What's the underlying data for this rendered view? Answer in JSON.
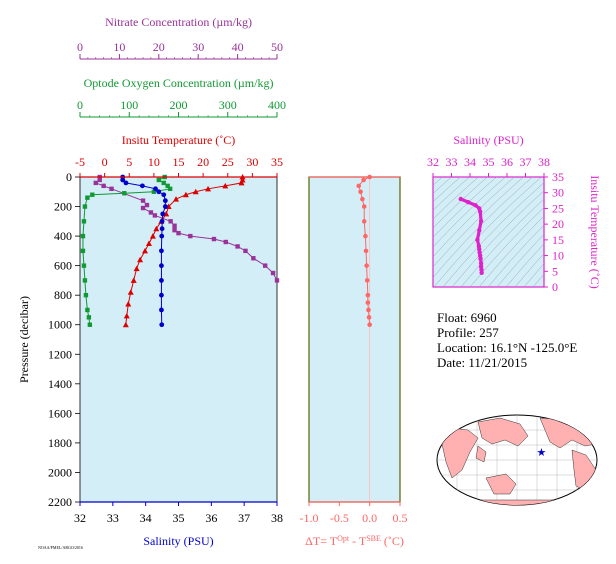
{
  "colors": {
    "nitrate": "#993399",
    "oxygen": "#119933",
    "temperature": "#dd0000",
    "salinity": "#0000cc",
    "dt": "#ff6666",
    "ts": "#dd22cc",
    "panel_bg": "#d4eef7",
    "map_land": "#ffb0b0",
    "map_ocean": "#ffffff",
    "float_marker": "#0000cc"
  },
  "credit": "NOAA/PMEL/ARGO/2016",
  "float_info": {
    "float": "Float:  6960",
    "profile": "Profile:  257",
    "location": "Location:  16.1°N  -125.0°E",
    "date": "Date:  11/21/2015"
  },
  "chart_data": [
    {
      "type": "line",
      "panel": "profile",
      "ylabel": "Pressure (decibar)",
      "ylim": [
        2200,
        0
      ],
      "yticks": [
        "0",
        "200",
        "400",
        "600",
        "800",
        "1000",
        "1200",
        "1400",
        "1600",
        "1800",
        "2000",
        "2200"
      ],
      "axes": {
        "nitrate": {
          "label": "Nitrate Concentration (µm/kg)",
          "range": [
            0,
            50
          ],
          "ticks": [
            "0",
            "10",
            "20",
            "30",
            "40",
            "50"
          ]
        },
        "oxygen": {
          "label": "Optode Oxygen Concentration (µm/kg)",
          "range": [
            0,
            400
          ],
          "ticks": [
            "0",
            "100",
            "200",
            "300",
            "400"
          ]
        },
        "temperature": {
          "label": "Insitu Temperature (˚C)",
          "range": [
            -5,
            35
          ],
          "ticks": [
            "-5",
            "0",
            "5",
            "10",
            "15",
            "20",
            "25",
            "30",
            "35"
          ]
        },
        "salinity": {
          "label": "Salinity (PSU)",
          "range": [
            32,
            38
          ],
          "ticks": [
            "32",
            "33",
            "34",
            "35",
            "36",
            "37",
            "38"
          ]
        }
      },
      "series": [
        {
          "name": "Nitrate",
          "axis": "nitrate",
          "x": [
            5,
            5,
            4,
            6,
            8,
            16,
            17,
            16,
            18,
            19,
            23,
            24,
            24,
            25,
            28,
            34,
            37,
            40,
            42,
            44,
            47,
            49,
            50
          ],
          "y": [
            0,
            20,
            40,
            60,
            80,
            160,
            190,
            210,
            240,
            260,
            300,
            330,
            360,
            380,
            400,
            420,
            440,
            470,
            500,
            550,
            600,
            650,
            700
          ]
        },
        {
          "name": "Oxygen",
          "axis": "oxygen",
          "x": [
            172,
            160,
            170,
            178,
            183,
            150,
            90,
            25,
            15,
            10,
            8,
            6,
            6,
            8,
            10,
            12,
            15,
            18,
            20
          ],
          "y": [
            0,
            20,
            40,
            60,
            80,
            100,
            110,
            120,
            140,
            200,
            300,
            400,
            500,
            600,
            700,
            800,
            900,
            950,
            1000
          ]
        },
        {
          "name": "Temperature",
          "axis": "temperature",
          "x": [
            28.0,
            28.0,
            27.8,
            24.5,
            21.0,
            18.5,
            16.5,
            14.5,
            13.0,
            12.5,
            11.5,
            10.5,
            9.8,
            9.0,
            8.2,
            7.2,
            6.5,
            5.9,
            5.3,
            4.8,
            4.5,
            4.3
          ],
          "y": [
            0,
            20,
            40,
            60,
            80,
            100,
            120,
            150,
            200,
            250,
            300,
            350,
            400,
            450,
            500,
            560,
            620,
            700,
            780,
            860,
            940,
            1000
          ]
        },
        {
          "name": "Salinity",
          "axis": "salinity",
          "x": [
            33.3,
            33.3,
            33.4,
            33.9,
            34.3,
            34.4,
            34.55,
            34.6,
            34.6,
            34.52,
            34.5,
            34.5,
            34.49,
            34.48,
            34.48,
            34.48,
            34.48,
            34.48,
            34.49
          ],
          "y": [
            0,
            20,
            40,
            60,
            80,
            100,
            120,
            160,
            200,
            250,
            300,
            350,
            400,
            500,
            600,
            700,
            800,
            900,
            1000
          ]
        }
      ]
    },
    {
      "type": "line",
      "panel": "dt",
      "xlabel": "ΔT= T^Opt - T^SBE (˚C)",
      "xlim": [
        -1.0,
        0.5
      ],
      "xticks": [
        "-1.0",
        "-0.5",
        "0.0",
        "0.5"
      ],
      "ylim": [
        2200,
        0
      ],
      "series": [
        {
          "name": "ΔT",
          "x": [
            0.0,
            -0.1,
            -0.18,
            -0.15,
            -0.12,
            -0.09,
            -0.09,
            -0.07,
            -0.06,
            -0.05,
            -0.04,
            -0.03,
            -0.03,
            -0.02,
            -0.01,
            0.0
          ],
          "y": [
            0,
            20,
            60,
            100,
            150,
            200,
            300,
            400,
            500,
            600,
            700,
            800,
            850,
            900,
            950,
            1000
          ]
        }
      ]
    },
    {
      "type": "scatter",
      "panel": "ts",
      "title": "Salinity (PSU)",
      "ylabel": "Insitu Temperature (˚C)",
      "xlim": [
        32,
        38
      ],
      "xticks": [
        "32",
        "33",
        "34",
        "35",
        "36",
        "37",
        "38"
      ],
      "ylim": [
        0,
        35
      ],
      "yticks": [
        "0",
        "5",
        "10",
        "15",
        "20",
        "25",
        "30",
        "35"
      ],
      "series": [
        {
          "name": "T-S",
          "x": [
            33.5,
            33.9,
            34.3,
            34.5,
            34.55,
            34.6,
            34.5,
            34.4,
            34.48,
            34.5,
            34.52,
            34.55,
            34.57,
            34.6,
            34.6,
            34.62,
            34.63
          ],
          "y": [
            28.0,
            27.0,
            26.0,
            25.0,
            24.0,
            21.0,
            18.0,
            15.0,
            13.0,
            12.0,
            11.0,
            10.0,
            9.0,
            7.5,
            6.5,
            5.5,
            4.5
          ]
        }
      ]
    }
  ]
}
